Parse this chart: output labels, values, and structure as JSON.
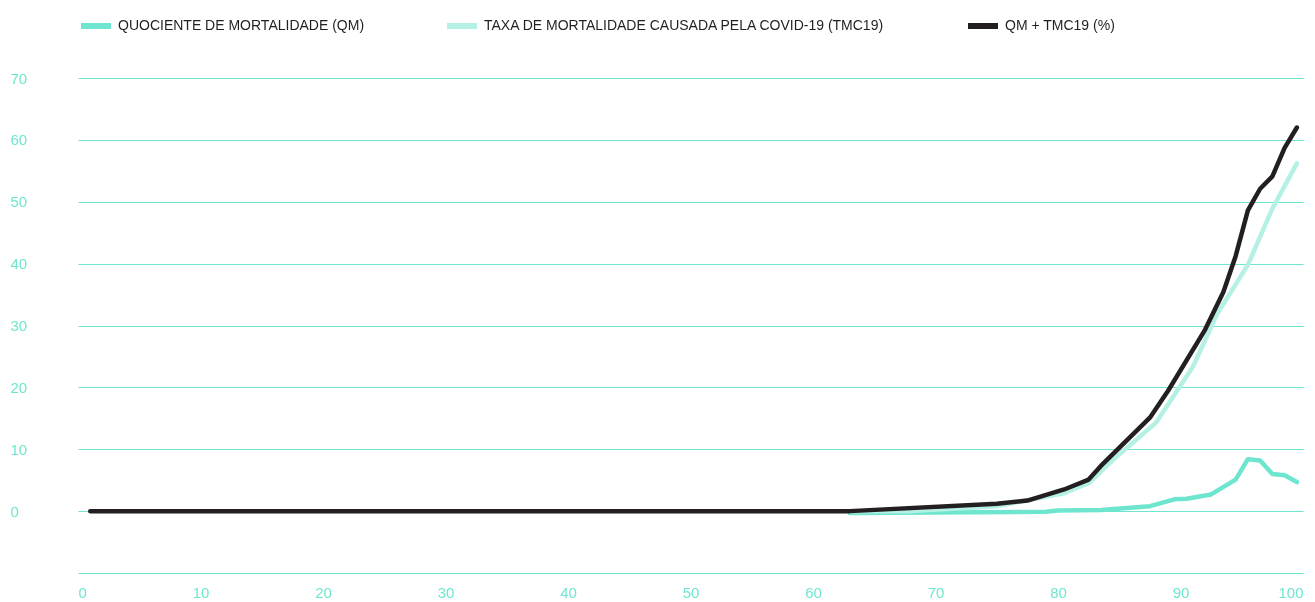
{
  "chart_data": {
    "type": "line",
    "xlim": [
      0,
      100
    ],
    "xticks": [
      0,
      10,
      20,
      30,
      40,
      50,
      60,
      70,
      80,
      90,
      100
    ],
    "ylim": [
      -10,
      70
    ],
    "yticks": [
      {
        "value": -10,
        "label": null
      },
      0,
      10,
      20,
      30,
      40,
      50,
      60,
      70
    ],
    "grid": "y",
    "legend": "top",
    "marker": "none",
    "line_style": "solid",
    "series": [
      {
        "name": "QUOCIENTE DE MORTALIDADE (QM)",
        "color": "#6ee6cf",
        "x": [
          63,
          79,
          80,
          83.5,
          87.5,
          89.5,
          90.5,
          92.5,
          94.5,
          95.5,
          96.5,
          97.5,
          98.5,
          99.5
        ],
        "values": [
          -0.3,
          -0.1,
          0.1,
          0.2,
          0.8,
          1.9,
          2,
          2.7,
          5.1,
          8.4,
          8.2,
          6,
          5.8,
          4.7
        ]
      },
      {
        "name": "TAXA DE MORTALIDADE CAUSADA PELA COVID-19 (TMC19)",
        "color": "#b5f0e4",
        "x": [
          63,
          68,
          75,
          80.5,
          82.5,
          84.5,
          88,
          91,
          93,
          95.5,
          97.5,
          99.5
        ],
        "values": [
          0,
          0,
          0.8,
          2.9,
          4.5,
          8.3,
          14.3,
          23.3,
          31.9,
          39.8,
          48.9,
          56.2
        ]
      },
      {
        "name": "QM + TMC19 (%)",
        "color": "#231f20",
        "x": [
          1,
          30,
          58.5,
          63,
          75,
          77.5,
          80.5,
          82.5,
          83.5,
          87.5,
          89,
          92,
          93.5,
          94.5,
          95.5,
          96.5,
          97.5,
          98.5,
          99.5
        ],
        "values": [
          0,
          0,
          0,
          0,
          1.2,
          1.7,
          3.5,
          5.1,
          7.3,
          15.1,
          19.5,
          29.3,
          35.4,
          41.2,
          48.6,
          52.1,
          54.1,
          58.7,
          62
        ]
      }
    ]
  }
}
